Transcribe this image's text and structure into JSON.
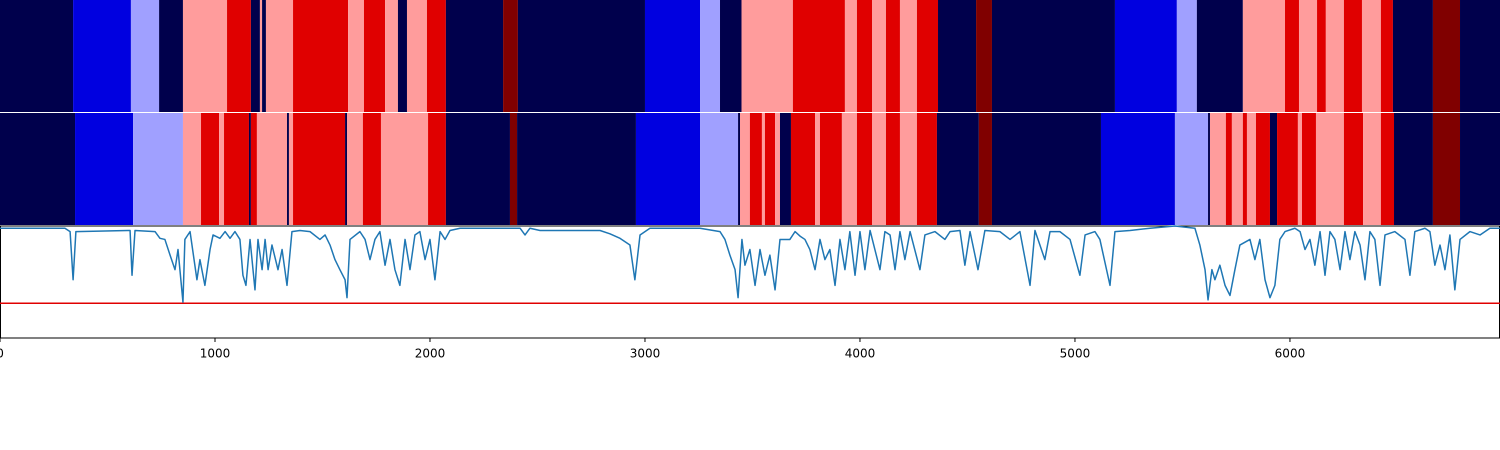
{
  "chart_data": {
    "type": "segmentation",
    "xlim": [
      0,
      6977
    ],
    "xticks": [
      0,
      1000,
      2000,
      3000,
      4000,
      5000,
      6000
    ],
    "class_colors": [
      "#00004c",
      "#0000e0",
      "#a0a0ff",
      "#ff9c9c",
      "#e00000",
      "#800000"
    ],
    "rows": [
      {
        "boundaries": [
          0,
          340,
          609,
          740,
          851,
          1056,
          1167,
          1209,
          1219,
          1237,
          1363,
          1619,
          1693,
          1791,
          1851,
          1893,
          1986,
          2074,
          2340,
          2409,
          3000,
          3256,
          3349,
          3449,
          3688,
          3930,
          3986,
          4056,
          4121,
          4186,
          4265,
          4363,
          4540,
          4614,
          5186,
          5474,
          5567,
          5781,
          5977,
          6042,
          6126,
          6167,
          6251,
          6335,
          6423,
          6479,
          6665,
          6791,
          6977
        ],
        "classes": [
          0,
          1,
          2,
          0,
          3,
          4,
          0,
          3,
          0,
          3,
          4,
          3,
          4,
          3,
          0,
          3,
          4,
          0,
          5,
          0,
          1,
          2,
          0,
          3,
          4,
          3,
          4,
          3,
          4,
          3,
          4,
          0,
          5,
          0,
          1,
          2,
          0,
          3,
          4,
          3,
          4,
          3,
          4,
          3,
          4,
          0,
          5,
          0
        ]
      },
      {
        "boundaries": [
          0,
          349,
          619,
          851,
          935,
          1019,
          1042,
          1158,
          1167,
          1195,
          1335,
          1344,
          1363,
          1605,
          1614,
          1688,
          1772,
          1991,
          2074,
          2372,
          2405,
          2958,
          3256,
          3433,
          3442,
          3488,
          3544,
          3558,
          3605,
          3628,
          3679,
          3791,
          3814,
          3916,
          3986,
          4056,
          4121,
          4186,
          4265,
          4358,
          4553,
          4614,
          5121,
          5465,
          5619,
          5628,
          5702,
          5730,
          5781,
          5800,
          5842,
          5856,
          5907,
          5940,
          6037,
          6056,
          6121,
          6251,
          6340,
          6423,
          6484,
          6665,
          6791,
          6977
        ],
        "classes": [
          0,
          1,
          2,
          3,
          4,
          3,
          4,
          0,
          4,
          3,
          0,
          3,
          4,
          0,
          3,
          4,
          3,
          4,
          0,
          5,
          0,
          1,
          2,
          0,
          3,
          4,
          3,
          4,
          3,
          0,
          4,
          3,
          4,
          3,
          4,
          3,
          4,
          3,
          4,
          0,
          5,
          0,
          1,
          2,
          0,
          3,
          4,
          3,
          4,
          3,
          4,
          4,
          0,
          4,
          3,
          4,
          3,
          4,
          3,
          4,
          0,
          5,
          0
        ]
      }
    ],
    "line": {
      "color": "#1f77b4",
      "x": [
        0,
        302,
        326,
        340,
        353,
        605,
        614,
        628,
        721,
        744,
        767,
        791,
        814,
        828,
        851,
        860,
        884,
        916,
        930,
        953,
        977,
        991,
        1023,
        1047,
        1070,
        1093,
        1116,
        1130,
        1144,
        1163,
        1186,
        1200,
        1219,
        1233,
        1247,
        1265,
        1293,
        1312,
        1335,
        1358,
        1395,
        1442,
        1488,
        1512,
        1535,
        1558,
        1581,
        1605,
        1614,
        1628,
        1674,
        1698,
        1721,
        1744,
        1767,
        1791,
        1814,
        1837,
        1860,
        1884,
        1907,
        1930,
        1953,
        1977,
        2000,
        2023,
        2047,
        2070,
        2093,
        2140,
        2419,
        2442,
        2465,
        2512,
        2791,
        2837,
        2884,
        2930,
        2953,
        2977,
        3023,
        3256,
        3349,
        3372,
        3395,
        3419,
        3433,
        3451,
        3465,
        3488,
        3512,
        3535,
        3558,
        3581,
        3605,
        3628,
        3674,
        3698,
        3721,
        3744,
        3767,
        3791,
        3814,
        3837,
        3860,
        3884,
        3907,
        3930,
        3953,
        3977,
        4000,
        4023,
        4047,
        4093,
        4116,
        4140,
        4163,
        4186,
        4209,
        4233,
        4279,
        4302,
        4349,
        4395,
        4419,
        4465,
        4488,
        4512,
        4549,
        4581,
        4651,
        4698,
        4744,
        4791,
        4814,
        4860,
        4884,
        4930,
        4977,
        5023,
        5047,
        5093,
        5116,
        5163,
        5186,
        5256,
        5349,
        5465,
        5558,
        5581,
        5605,
        5619,
        5637,
        5651,
        5674,
        5698,
        5721,
        5744,
        5767,
        5814,
        5837,
        5860,
        5884,
        5907,
        5930,
        5953,
        5977,
        6023,
        6047,
        6070,
        6093,
        6116,
        6140,
        6163,
        6186,
        6209,
        6233,
        6256,
        6279,
        6302,
        6326,
        6349,
        6372,
        6395,
        6419,
        6442,
        6488,
        6535,
        6558,
        6581,
        6628,
        6651,
        6674,
        6698,
        6721,
        6744,
        6767,
        6791,
        6837,
        6884,
        6930,
        6977
      ],
      "y": [
        0.98,
        0.98,
        0.95,
        0.52,
        0.95,
        0.96,
        0.56,
        0.96,
        0.95,
        0.89,
        0.88,
        0.74,
        0.61,
        0.79,
        0.32,
        0.88,
        0.95,
        0.52,
        0.7,
        0.47,
        0.79,
        0.92,
        0.89,
        0.95,
        0.89,
        0.95,
        0.88,
        0.56,
        0.47,
        0.88,
        0.43,
        0.88,
        0.61,
        0.88,
        0.61,
        0.83,
        0.61,
        0.79,
        0.47,
        0.95,
        0.96,
        0.95,
        0.88,
        0.92,
        0.83,
        0.7,
        0.61,
        0.52,
        0.36,
        0.88,
        0.95,
        0.88,
        0.7,
        0.88,
        0.95,
        0.65,
        0.88,
        0.61,
        0.47,
        0.88,
        0.61,
        0.92,
        0.95,
        0.7,
        0.88,
        0.52,
        0.95,
        0.88,
        0.96,
        0.98,
        0.98,
        0.92,
        0.98,
        0.96,
        0.96,
        0.93,
        0.89,
        0.83,
        0.52,
        0.92,
        0.98,
        0.98,
        0.95,
        0.88,
        0.74,
        0.61,
        0.36,
        0.88,
        0.65,
        0.79,
        0.47,
        0.79,
        0.56,
        0.74,
        0.43,
        0.88,
        0.88,
        0.95,
        0.91,
        0.88,
        0.79,
        0.61,
        0.88,
        0.7,
        0.79,
        0.47,
        0.88,
        0.61,
        0.95,
        0.56,
        0.95,
        0.61,
        0.96,
        0.61,
        0.95,
        0.92,
        0.61,
        0.95,
        0.7,
        0.95,
        0.61,
        0.92,
        0.95,
        0.88,
        0.95,
        0.96,
        0.65,
        0.95,
        0.61,
        0.96,
        0.95,
        0.88,
        0.95,
        0.47,
        0.96,
        0.7,
        0.95,
        0.95,
        0.88,
        0.56,
        0.92,
        0.95,
        0.88,
        0.47,
        0.95,
        0.96,
        0.98,
        1.0,
        0.98,
        0.83,
        0.61,
        0.34,
        0.61,
        0.52,
        0.65,
        0.47,
        0.38,
        0.61,
        0.83,
        0.88,
        0.7,
        0.88,
        0.52,
        0.36,
        0.47,
        0.88,
        0.95,
        0.98,
        0.95,
        0.79,
        0.88,
        0.65,
        0.95,
        0.56,
        0.95,
        0.88,
        0.61,
        0.95,
        0.7,
        0.95,
        0.83,
        0.52,
        0.95,
        0.88,
        0.47,
        0.92,
        0.95,
        0.88,
        0.56,
        0.95,
        0.98,
        0.95,
        0.65,
        0.83,
        0.61,
        0.92,
        0.43,
        0.88,
        0.95,
        0.92,
        0.98,
        0.98
      ]
    },
    "ylim": [
      0,
      1
    ],
    "threshold": 0.31,
    "threshold_color": "#e00000"
  }
}
